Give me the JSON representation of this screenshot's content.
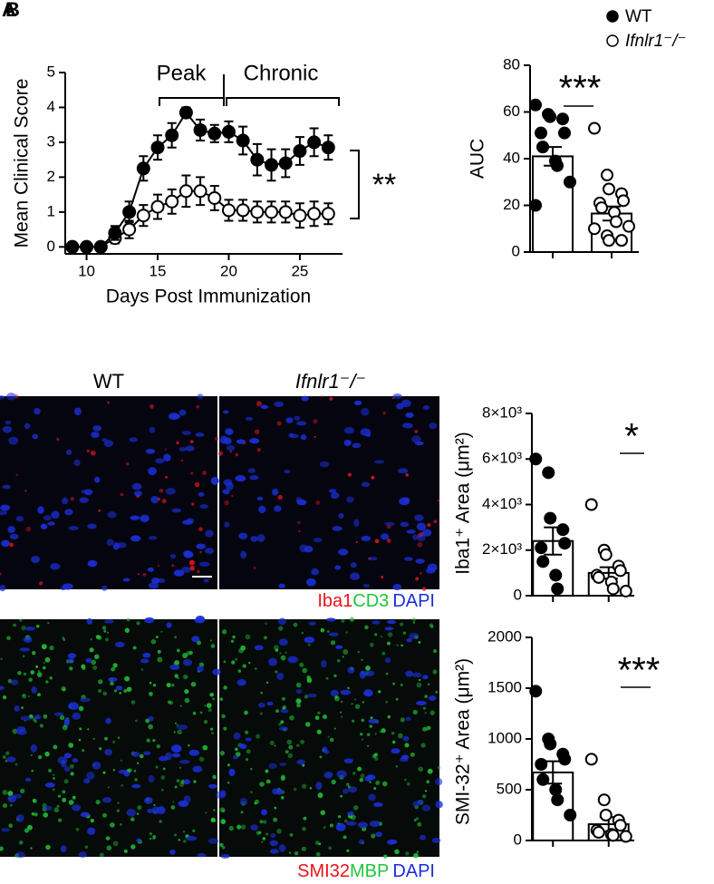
{
  "panel_labels": [
    "A",
    "B"
  ],
  "images": {
    "columns": [
      "WT",
      "Ifnlr1⁻/⁻"
    ],
    "stain_rows": [
      [
        "Iba1",
        "CD3",
        "DAPI"
      ],
      [
        "SMI32",
        "MBP",
        "DAPI"
      ]
    ]
  },
  "chart_data": [
    {
      "type": "line",
      "xlabel": "Days Post Immunization",
      "ylabel": "Mean Clinical Score",
      "x": [
        9,
        10,
        11,
        12,
        13,
        14,
        15,
        16,
        17,
        18,
        19,
        20,
        21,
        22,
        23,
        24,
        25,
        26,
        27
      ],
      "xlim": [
        8.5,
        28
      ],
      "xticks": [
        10,
        15,
        20,
        25
      ],
      "ylim": [
        -0.2,
        5
      ],
      "yticks": [
        0,
        1,
        2,
        3,
        4,
        5
      ],
      "annotations": [
        "Peak",
        "Chronic",
        "**"
      ],
      "series": [
        {
          "name": "WT",
          "color": "#000000",
          "marker": "filled",
          "values": [
            0,
            0,
            0,
            0.4,
            1.0,
            2.25,
            2.85,
            3.2,
            3.85,
            3.35,
            3.25,
            3.3,
            3.05,
            2.5,
            2.35,
            2.4,
            2.75,
            3.0,
            2.85
          ],
          "errors": [
            0,
            0,
            0,
            0.2,
            0.3,
            0.35,
            0.35,
            0.35,
            0.15,
            0.3,
            0.25,
            0.3,
            0.4,
            0.45,
            0.45,
            0.4,
            0.4,
            0.4,
            0.35
          ]
        },
        {
          "name": "Ifnlr1⁻/⁻",
          "color": "#000000",
          "marker": "open",
          "values": [
            0,
            0,
            0,
            0.25,
            0.5,
            0.9,
            1.15,
            1.3,
            1.6,
            1.6,
            1.4,
            1.05,
            1.05,
            1.0,
            1.0,
            1.0,
            0.9,
            0.95,
            0.95
          ],
          "errors": [
            0,
            0,
            0,
            0.15,
            0.25,
            0.3,
            0.35,
            0.35,
            0.45,
            0.4,
            0.35,
            0.3,
            0.3,
            0.3,
            0.3,
            0.3,
            0.35,
            0.35,
            0.3
          ]
        }
      ]
    },
    {
      "type": "bar",
      "ylabel": "AUC",
      "annotation": "***",
      "categories": [
        null,
        null
      ],
      "values": [
        41,
        16.5
      ],
      "errors": [
        4,
        3
      ],
      "markers": [
        "filled",
        "open"
      ],
      "points": [
        [
          63,
          59,
          58,
          57,
          51,
          51,
          45,
          39,
          37,
          30,
          20
        ],
        [
          53,
          33,
          27,
          25,
          22,
          21,
          19,
          17,
          13,
          11,
          10,
          7,
          5,
          5
        ]
      ],
      "ylim": [
        0,
        80
      ],
      "yticks": [
        0,
        20,
        40,
        60,
        80
      ]
    },
    {
      "type": "bar",
      "ylabel": "Iba1⁺ Area (μm²)",
      "annotation": "*",
      "categories": [
        null,
        null
      ],
      "values": [
        2400,
        1000
      ],
      "errors": [
        600,
        250
      ],
      "markers": [
        "filled",
        "open"
      ],
      "points": [
        [
          6000,
          5400,
          3400,
          2900,
          2300,
          2100,
          1500,
          900,
          300
        ],
        [
          4000,
          2000,
          1800,
          1300,
          1100,
          900,
          800,
          600,
          300,
          200
        ]
      ],
      "ylim": [
        0,
        8000
      ],
      "yticks": [
        0,
        {
          "value": 2000,
          "label": "2×10³"
        },
        {
          "value": 4000,
          "label": "4×10³"
        },
        {
          "value": 6000,
          "label": "6×10³"
        },
        {
          "value": 8000,
          "label": "8×10³"
        }
      ]
    },
    {
      "type": "bar",
      "ylabel": "SMI-32⁺ Area (μm²)",
      "annotation": "***",
      "categories": [
        null,
        null
      ],
      "values": [
        670,
        160
      ],
      "errors": [
        110,
        70
      ],
      "markers": [
        "filled",
        "open"
      ],
      "points": [
        [
          1470,
          1000,
          950,
          850,
          800,
          750,
          600,
          500,
          400,
          250
        ],
        [
          800,
          400,
          250,
          200,
          150,
          100,
          80,
          60,
          50,
          40
        ]
      ],
      "ylim": [
        0,
        2000
      ],
      "yticks": [
        0,
        500,
        1000,
        1500,
        2000
      ]
    }
  ]
}
